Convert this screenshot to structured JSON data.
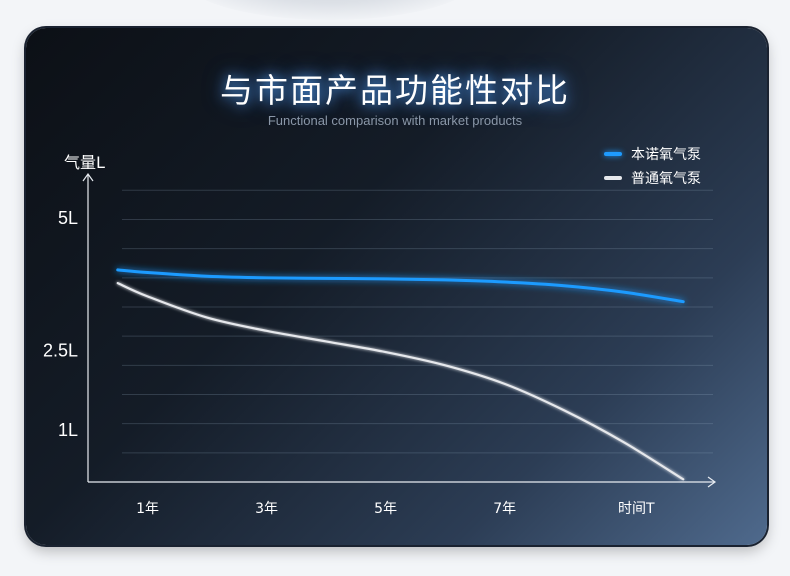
{
  "header": {
    "title": "与市面产品功能性对比",
    "subtitle": "Functional comparison with market products"
  },
  "chart_data": {
    "type": "line",
    "title": "与市面产品功能性对比",
    "subtitle": "Functional comparison with market products",
    "ylabel": "气量L",
    "xlabel": "时间T",
    "y_ticks": [
      {
        "label": "5L",
        "value": 5
      },
      {
        "label": "2.5L",
        "value": 2.5
      },
      {
        "label": "1L",
        "value": 1
      }
    ],
    "x_ticks": [
      {
        "label": "1年",
        "value": 1
      },
      {
        "label": "3年",
        "value": 3
      },
      {
        "label": "5年",
        "value": 5
      },
      {
        "label": "7年",
        "value": 7
      }
    ],
    "xlim": [
      0,
      10.5
    ],
    "ylim": [
      0,
      5.6
    ],
    "grid": true,
    "legend_position": "top-right",
    "series": [
      {
        "name": "本诺氧气泵",
        "color": "#1e9bff",
        "x": [
          0.5,
          1,
          2,
          3,
          4,
          5,
          6,
          7,
          8,
          9,
          10
        ],
        "y": [
          4.0,
          3.95,
          3.88,
          3.85,
          3.84,
          3.83,
          3.81,
          3.77,
          3.7,
          3.58,
          3.4
        ]
      },
      {
        "name": "普通氧气泵",
        "color": "#e6e8ec",
        "x": [
          0.5,
          1,
          2,
          3,
          4,
          5,
          6,
          7,
          8,
          9,
          10
        ],
        "y": [
          3.75,
          3.5,
          3.1,
          2.85,
          2.65,
          2.45,
          2.2,
          1.85,
          1.35,
          0.75,
          0.05
        ]
      }
    ]
  }
}
